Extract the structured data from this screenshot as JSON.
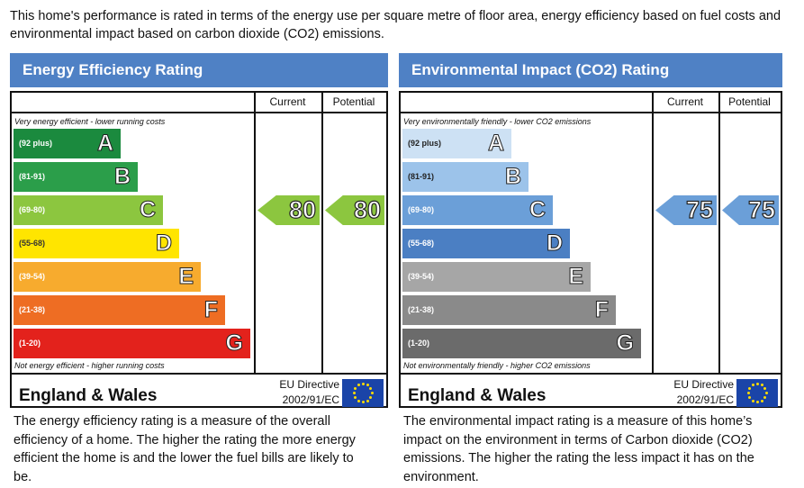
{
  "intro": "This home's performance is rated in terms of the energy use per square metre of floor area, energy efficiency based on fuel costs and environmental impact based on carbon dioxide (CO2) emissions.",
  "panels": [
    {
      "title": "Energy Efficiency Rating",
      "current_label": "Current",
      "potential_label": "Potential",
      "top_note": "Very energy efficient - lower running costs",
      "bottom_note": "Not energy efficient - higher running costs",
      "bands": [
        {
          "letter": "A",
          "range": "(92 plus)",
          "color": "#1b8a3e"
        },
        {
          "letter": "B",
          "range": "(81-91)",
          "color": "#2b9e4a"
        },
        {
          "letter": "C",
          "range": "(69-80)",
          "color": "#8cc63f"
        },
        {
          "letter": "D",
          "range": "(55-68)",
          "color": "#ffe500"
        },
        {
          "letter": "E",
          "range": "(39-54)",
          "color": "#f7ab2e"
        },
        {
          "letter": "F",
          "range": "(21-38)",
          "color": "#ee6d23"
        },
        {
          "letter": "G",
          "range": "(1-20)",
          "color": "#e3221c"
        }
      ],
      "current": {
        "value": "80",
        "band": "C"
      },
      "potential": {
        "value": "80",
        "band": "C"
      },
      "region": "England & Wales",
      "directive_line1": "EU Directive",
      "directive_line2": "2002/91/EC",
      "description": "The energy efficiency rating is a measure of the overall efficiency of a home. The higher the rating the more energy efficient the home is and the lower the fuel bills are likely to be."
    },
    {
      "title": "Environmental Impact (CO2) Rating",
      "current_label": "Current",
      "potential_label": "Potential",
      "top_note": "Very environmentally friendly - lower CO2 emissions",
      "bottom_note": "Not environmentally friendly - higher CO2 emissions",
      "bands": [
        {
          "letter": "A",
          "range": "(92 plus)",
          "color": "#cde1f4"
        },
        {
          "letter": "B",
          "range": "(81-91)",
          "color": "#9cc3ea"
        },
        {
          "letter": "C",
          "range": "(69-80)",
          "color": "#6b9fd8"
        },
        {
          "letter": "D",
          "range": "(55-68)",
          "color": "#4b7fc3"
        },
        {
          "letter": "E",
          "range": "(39-54)",
          "color": "#a6a6a6"
        },
        {
          "letter": "F",
          "range": "(21-38)",
          "color": "#8a8a8a"
        },
        {
          "letter": "G",
          "range": "(1-20)",
          "color": "#6b6b6b"
        }
      ],
      "current": {
        "value": "75",
        "band": "C"
      },
      "potential": {
        "value": "75",
        "band": "C"
      },
      "region": "England & Wales",
      "directive_line1": "EU Directive",
      "directive_line2": "2002/91/EC",
      "description": "The environmental impact rating is a measure of this home’s impact on the environment in terms of Carbon dioxide (CO2) emissions. The higher the rating the less impact it has on the environment."
    }
  ]
}
